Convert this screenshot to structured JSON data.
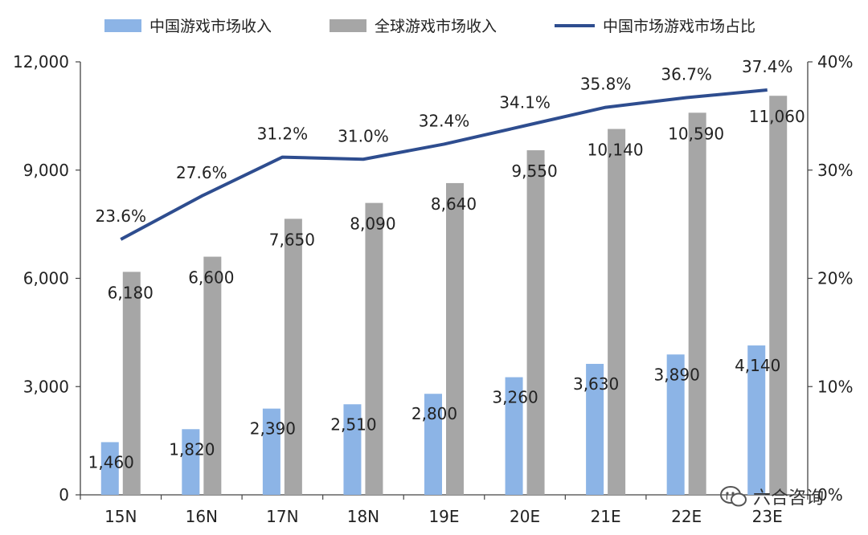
{
  "chart_data": {
    "type": "bar",
    "categories": [
      "15N",
      "16N",
      "17N",
      "18N",
      "19E",
      "20E",
      "21E",
      "22E",
      "23E"
    ],
    "series": [
      {
        "name": "中国游戏市场收入",
        "type": "bar",
        "axis": "left",
        "color": "#8cb4e6",
        "values": [
          1460,
          1820,
          2390,
          2510,
          2800,
          3260,
          3630,
          3890,
          4140
        ],
        "labels": [
          "1,460",
          "1,820",
          "2,390",
          "2,510",
          "2,800",
          "3,260",
          "3,630",
          "3,890",
          "4,140"
        ]
      },
      {
        "name": "全球游戏市场收入",
        "type": "bar",
        "axis": "left",
        "color": "#a6a6a6",
        "values": [
          6180,
          6600,
          7650,
          8090,
          8640,
          9550,
          10140,
          10590,
          11060
        ],
        "labels": [
          "6,180",
          "6,600",
          "7,650",
          "8,090",
          "8,640",
          "9,550",
          "10,140",
          "10,590",
          "11,060"
        ]
      },
      {
        "name": "中国市场游戏市场占比",
        "type": "line",
        "axis": "right",
        "color": "#2e4d8f",
        "values": [
          23.6,
          27.6,
          31.2,
          31.0,
          32.4,
          34.1,
          35.8,
          36.7,
          37.4
        ],
        "labels": [
          "23.6%",
          "27.6%",
          "31.2%",
          "31.0%",
          "32.4%",
          "34.1%",
          "35.8%",
          "36.7%",
          "37.4%"
        ]
      }
    ],
    "y_left": {
      "ylim": [
        0,
        12000
      ],
      "ticks": [
        0,
        3000,
        6000,
        9000,
        12000
      ],
      "tick_labels": [
        "0",
        "3,000",
        "6,000",
        "9,000",
        "12,000"
      ]
    },
    "y_right": {
      "ylim": [
        0,
        40
      ],
      "ticks": [
        0,
        10,
        20,
        30,
        40
      ],
      "tick_labels": [
        "0%",
        "10%",
        "20%",
        "30%",
        "40%"
      ]
    },
    "grid": false,
    "legend_position": "top"
  },
  "watermark": {
    "text": "六合咨询",
    "icon": "wechat-icon"
  }
}
